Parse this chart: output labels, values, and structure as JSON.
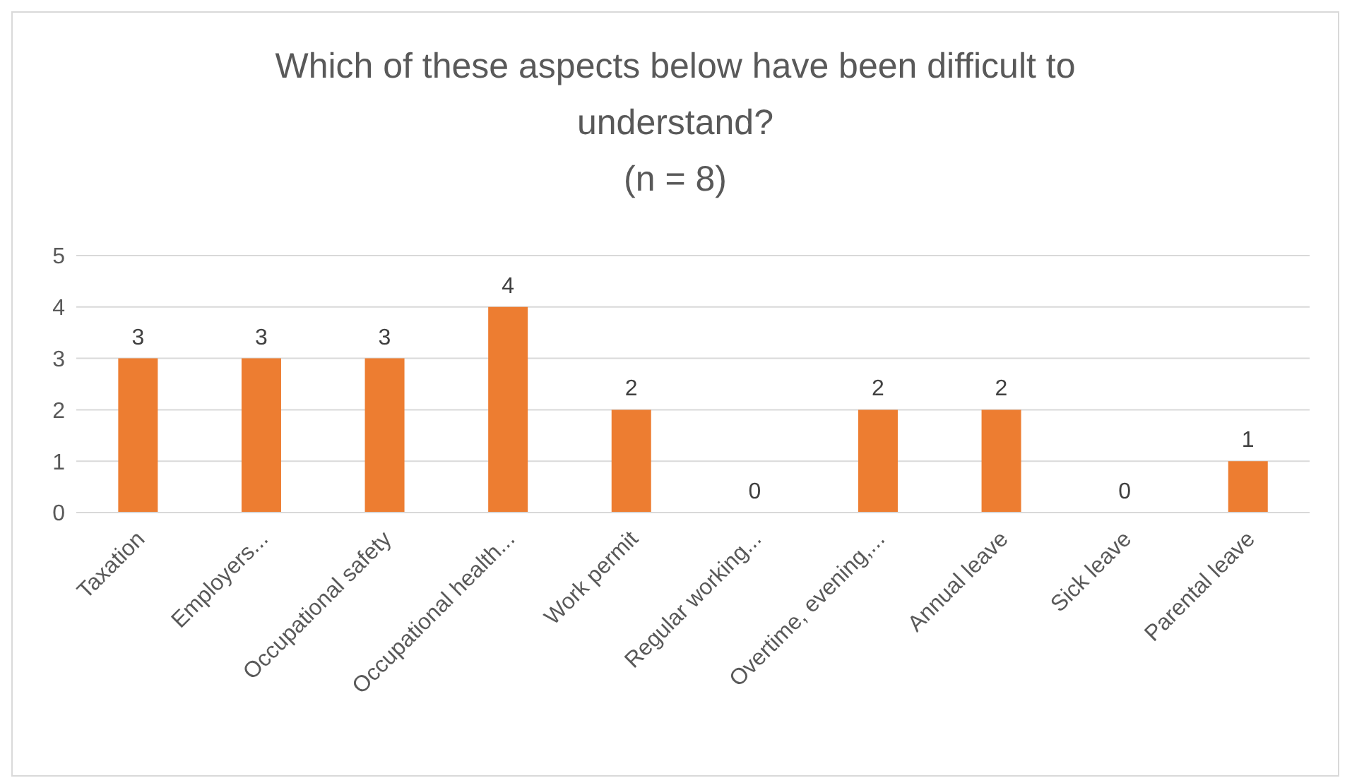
{
  "chart_data": {
    "type": "bar",
    "title": "Which of these aspects below have been difficult to understand?",
    "subtitle": "(n = 8)",
    "categories": [
      "Taxation",
      "Employers...",
      "Occupational safety",
      "Occupational health...",
      "Work permit",
      "Regular working...",
      "Overtime, evening,...",
      "Annual leave",
      "Sick leave",
      "Parental leave"
    ],
    "values": [
      3,
      3,
      3,
      4,
      2,
      0,
      2,
      2,
      0,
      1
    ],
    "color": "#ed7d31",
    "ylim": [
      0,
      5
    ],
    "yticks": [
      0,
      1,
      2,
      3,
      4,
      5
    ],
    "grid": "y",
    "data_labels": true,
    "legend": false
  }
}
